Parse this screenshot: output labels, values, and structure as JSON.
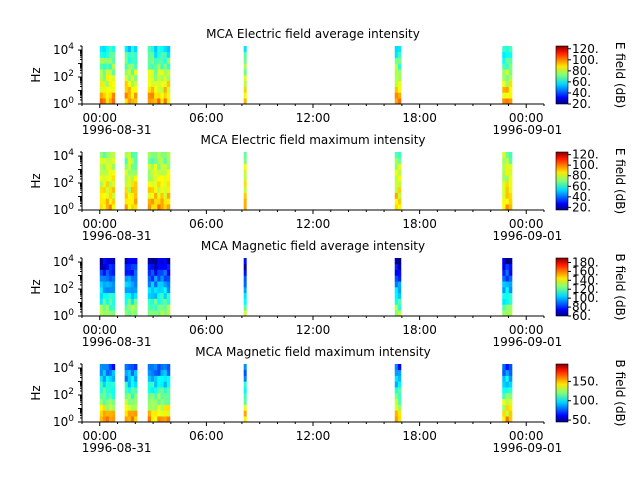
{
  "chart_data": [
    {
      "type": "heatmap",
      "title": "MCA  Electric field average intensity",
      "ylabel": "Hz",
      "y_scale": "log",
      "ylim": [
        1,
        20000
      ],
      "ytick_values": [
        1,
        100,
        10000
      ],
      "ytick_labels": [
        "10^0",
        "10^2",
        "10^4"
      ],
      "x_range_hours": [
        -1.0,
        25.0
      ],
      "xtick_hours": [
        0,
        6,
        12,
        18,
        24
      ],
      "xtick_labels": [
        "00:00",
        "06:00",
        "12:00",
        "18:00",
        "00:00"
      ],
      "date_labels": [
        "1996-08-31",
        "1996-09-01"
      ],
      "colorbar_label": "E field (dB)",
      "colorbar_range": [
        20,
        125
      ],
      "colorbar_ticks": [
        "20.",
        "40.",
        "60.",
        "80.",
        "100.",
        "120."
      ],
      "data_intervals_hours": [
        [
          0.0,
          0.85
        ],
        [
          1.4,
          2.1
        ],
        [
          2.7,
          3.95
        ],
        [
          8.1,
          8.25
        ],
        [
          16.6,
          16.95
        ],
        [
          22.65,
          23.2
        ]
      ],
      "intensity_low_freq": 95,
      "intensity_high_freq": 60
    },
    {
      "type": "heatmap",
      "title": "MCA  Electric field maximum intensity",
      "ylabel": "Hz",
      "y_scale": "log",
      "ylim": [
        1,
        20000
      ],
      "ytick_values": [
        1,
        100,
        10000
      ],
      "ytick_labels": [
        "10^0",
        "10^2",
        "10^4"
      ],
      "x_range_hours": [
        -1.0,
        25.0
      ],
      "xtick_hours": [
        0,
        6,
        12,
        18,
        24
      ],
      "xtick_labels": [
        "00:00",
        "06:00",
        "12:00",
        "18:00",
        "00:00"
      ],
      "date_labels": [
        "1996-08-31",
        "1996-09-01"
      ],
      "colorbar_label": "E field (dB)",
      "colorbar_range": [
        15,
        125
      ],
      "colorbar_ticks": [
        "20.",
        "40.",
        "60.",
        "80.",
        "100.",
        "120."
      ],
      "data_intervals_hours": [
        [
          0.0,
          0.85
        ],
        [
          1.4,
          2.1
        ],
        [
          2.7,
          3.95
        ],
        [
          8.1,
          8.25
        ],
        [
          16.6,
          16.95
        ],
        [
          22.65,
          23.2
        ]
      ],
      "intensity_low_freq": 90,
      "intensity_high_freq": 70
    },
    {
      "type": "heatmap",
      "title": "MCA  Magnetic field average intensity",
      "ylabel": "Hz",
      "y_scale": "log",
      "ylim": [
        1,
        20000
      ],
      "ytick_values": [
        1,
        100,
        10000
      ],
      "ytick_labels": [
        "10^0",
        "10^2",
        "10^4"
      ],
      "x_range_hours": [
        -1.0,
        25.0
      ],
      "xtick_hours": [
        0,
        6,
        12,
        18,
        24
      ],
      "xtick_labels": [
        "00:00",
        "06:00",
        "12:00",
        "18:00",
        "00:00"
      ],
      "date_labels": [
        "1996-08-31",
        "1996-09-01"
      ],
      "colorbar_label": "B field (dB)",
      "colorbar_range": [
        60,
        190
      ],
      "colorbar_ticks": [
        "60.",
        "80.",
        "100.",
        "120.",
        "140.",
        "160.",
        "180."
      ],
      "data_intervals_hours": [
        [
          0.0,
          0.85
        ],
        [
          1.4,
          2.1
        ],
        [
          2.7,
          3.95
        ],
        [
          8.1,
          8.25
        ],
        [
          16.6,
          16.95
        ],
        [
          22.65,
          23.2
        ]
      ],
      "intensity_low_freq": 130,
      "intensity_high_freq": 68
    },
    {
      "type": "heatmap",
      "title": "MCA  Magnetic field maximum intensity",
      "ylabel": "Hz",
      "y_scale": "log",
      "ylim": [
        1,
        20000
      ],
      "ytick_values": [
        1,
        100,
        10000
      ],
      "ytick_labels": [
        "10^0",
        "10^2",
        "10^4"
      ],
      "x_range_hours": [
        -1.0,
        25.0
      ],
      "xtick_hours": [
        0,
        6,
        12,
        18,
        24
      ],
      "xtick_labels": [
        "00:00",
        "06:00",
        "12:00",
        "18:00",
        "00:00"
      ],
      "date_labels": [
        "1996-08-31",
        "1996-09-01"
      ],
      "colorbar_label": "B field (dB)",
      "colorbar_range": [
        45,
        195
      ],
      "colorbar_ticks": [
        "50.",
        "100.",
        "150."
      ],
      "data_intervals_hours": [
        [
          0.0,
          0.85
        ],
        [
          1.4,
          2.1
        ],
        [
          2.7,
          3.95
        ],
        [
          8.1,
          8.25
        ],
        [
          16.6,
          16.95
        ],
        [
          22.65,
          23.2
        ]
      ],
      "intensity_low_freq": 150,
      "intensity_high_freq": 75
    }
  ]
}
